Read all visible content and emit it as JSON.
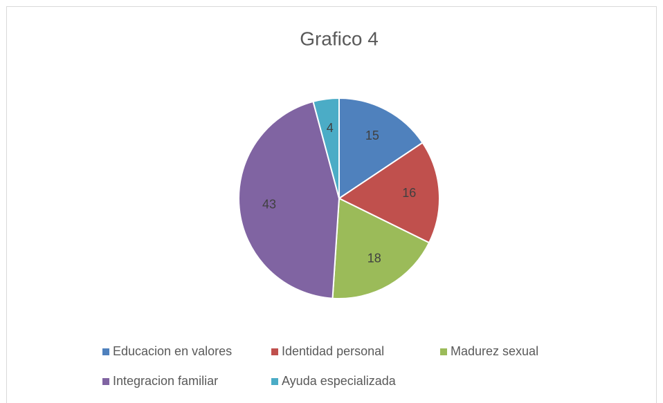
{
  "chart_data": {
    "type": "pie",
    "title": "Grafico 4",
    "categories": [
      "Educacion en valores",
      "Identidad personal",
      "Madurez sexual",
      "Integracion familiar",
      "Ayuda especializada"
    ],
    "values": [
      15,
      16,
      18,
      43,
      4
    ],
    "colors": [
      "#4f81bd",
      "#c0504d",
      "#9bbb59",
      "#8064a2",
      "#4bacc6"
    ],
    "legend": "bottom"
  }
}
